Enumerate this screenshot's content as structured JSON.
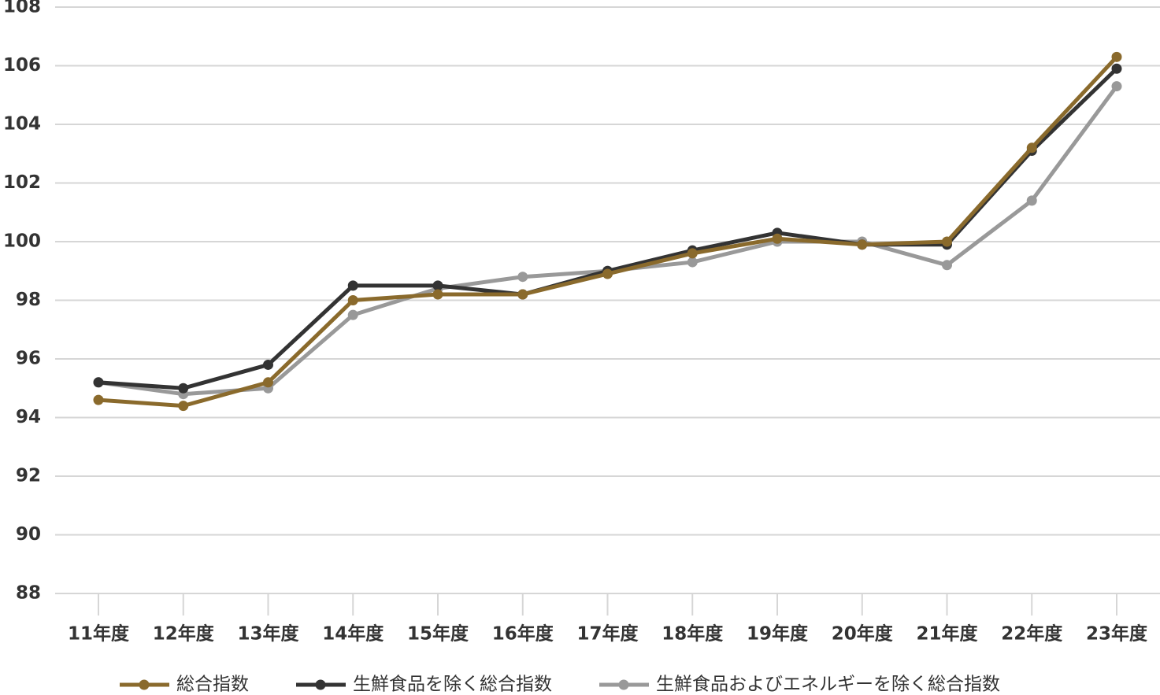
{
  "chart_data": {
    "type": "line",
    "categories": [
      "11年度",
      "12年度",
      "13年度",
      "14年度",
      "15年度",
      "16年度",
      "17年度",
      "18年度",
      "19年度",
      "20年度",
      "21年度",
      "22年度",
      "23年度"
    ],
    "series": [
      {
        "name": "総合指数",
        "color": "#8a6a2c",
        "values": [
          94.6,
          94.4,
          95.2,
          98.0,
          98.2,
          98.2,
          98.9,
          99.6,
          100.1,
          99.9,
          100.0,
          103.2,
          106.3
        ]
      },
      {
        "name": "生鮮食品を除く総合指数",
        "color": "#333333",
        "values": [
          95.2,
          95.0,
          95.8,
          98.5,
          98.5,
          98.2,
          99.0,
          99.7,
          100.3,
          99.9,
          99.9,
          103.1,
          105.9
        ]
      },
      {
        "name": "生鮮食品およびエネルギーを除く総合指数",
        "color": "#999999",
        "values": [
          95.2,
          94.8,
          95.0,
          97.5,
          98.4,
          98.8,
          99.0,
          99.3,
          100.0,
          100.0,
          99.2,
          101.4,
          105.3
        ]
      }
    ],
    "ylim": [
      88,
      108
    ],
    "yticks": [
      88,
      90,
      92,
      94,
      96,
      98,
      100,
      102,
      104,
      106,
      108
    ],
    "grid": true,
    "legend": "bottom"
  }
}
